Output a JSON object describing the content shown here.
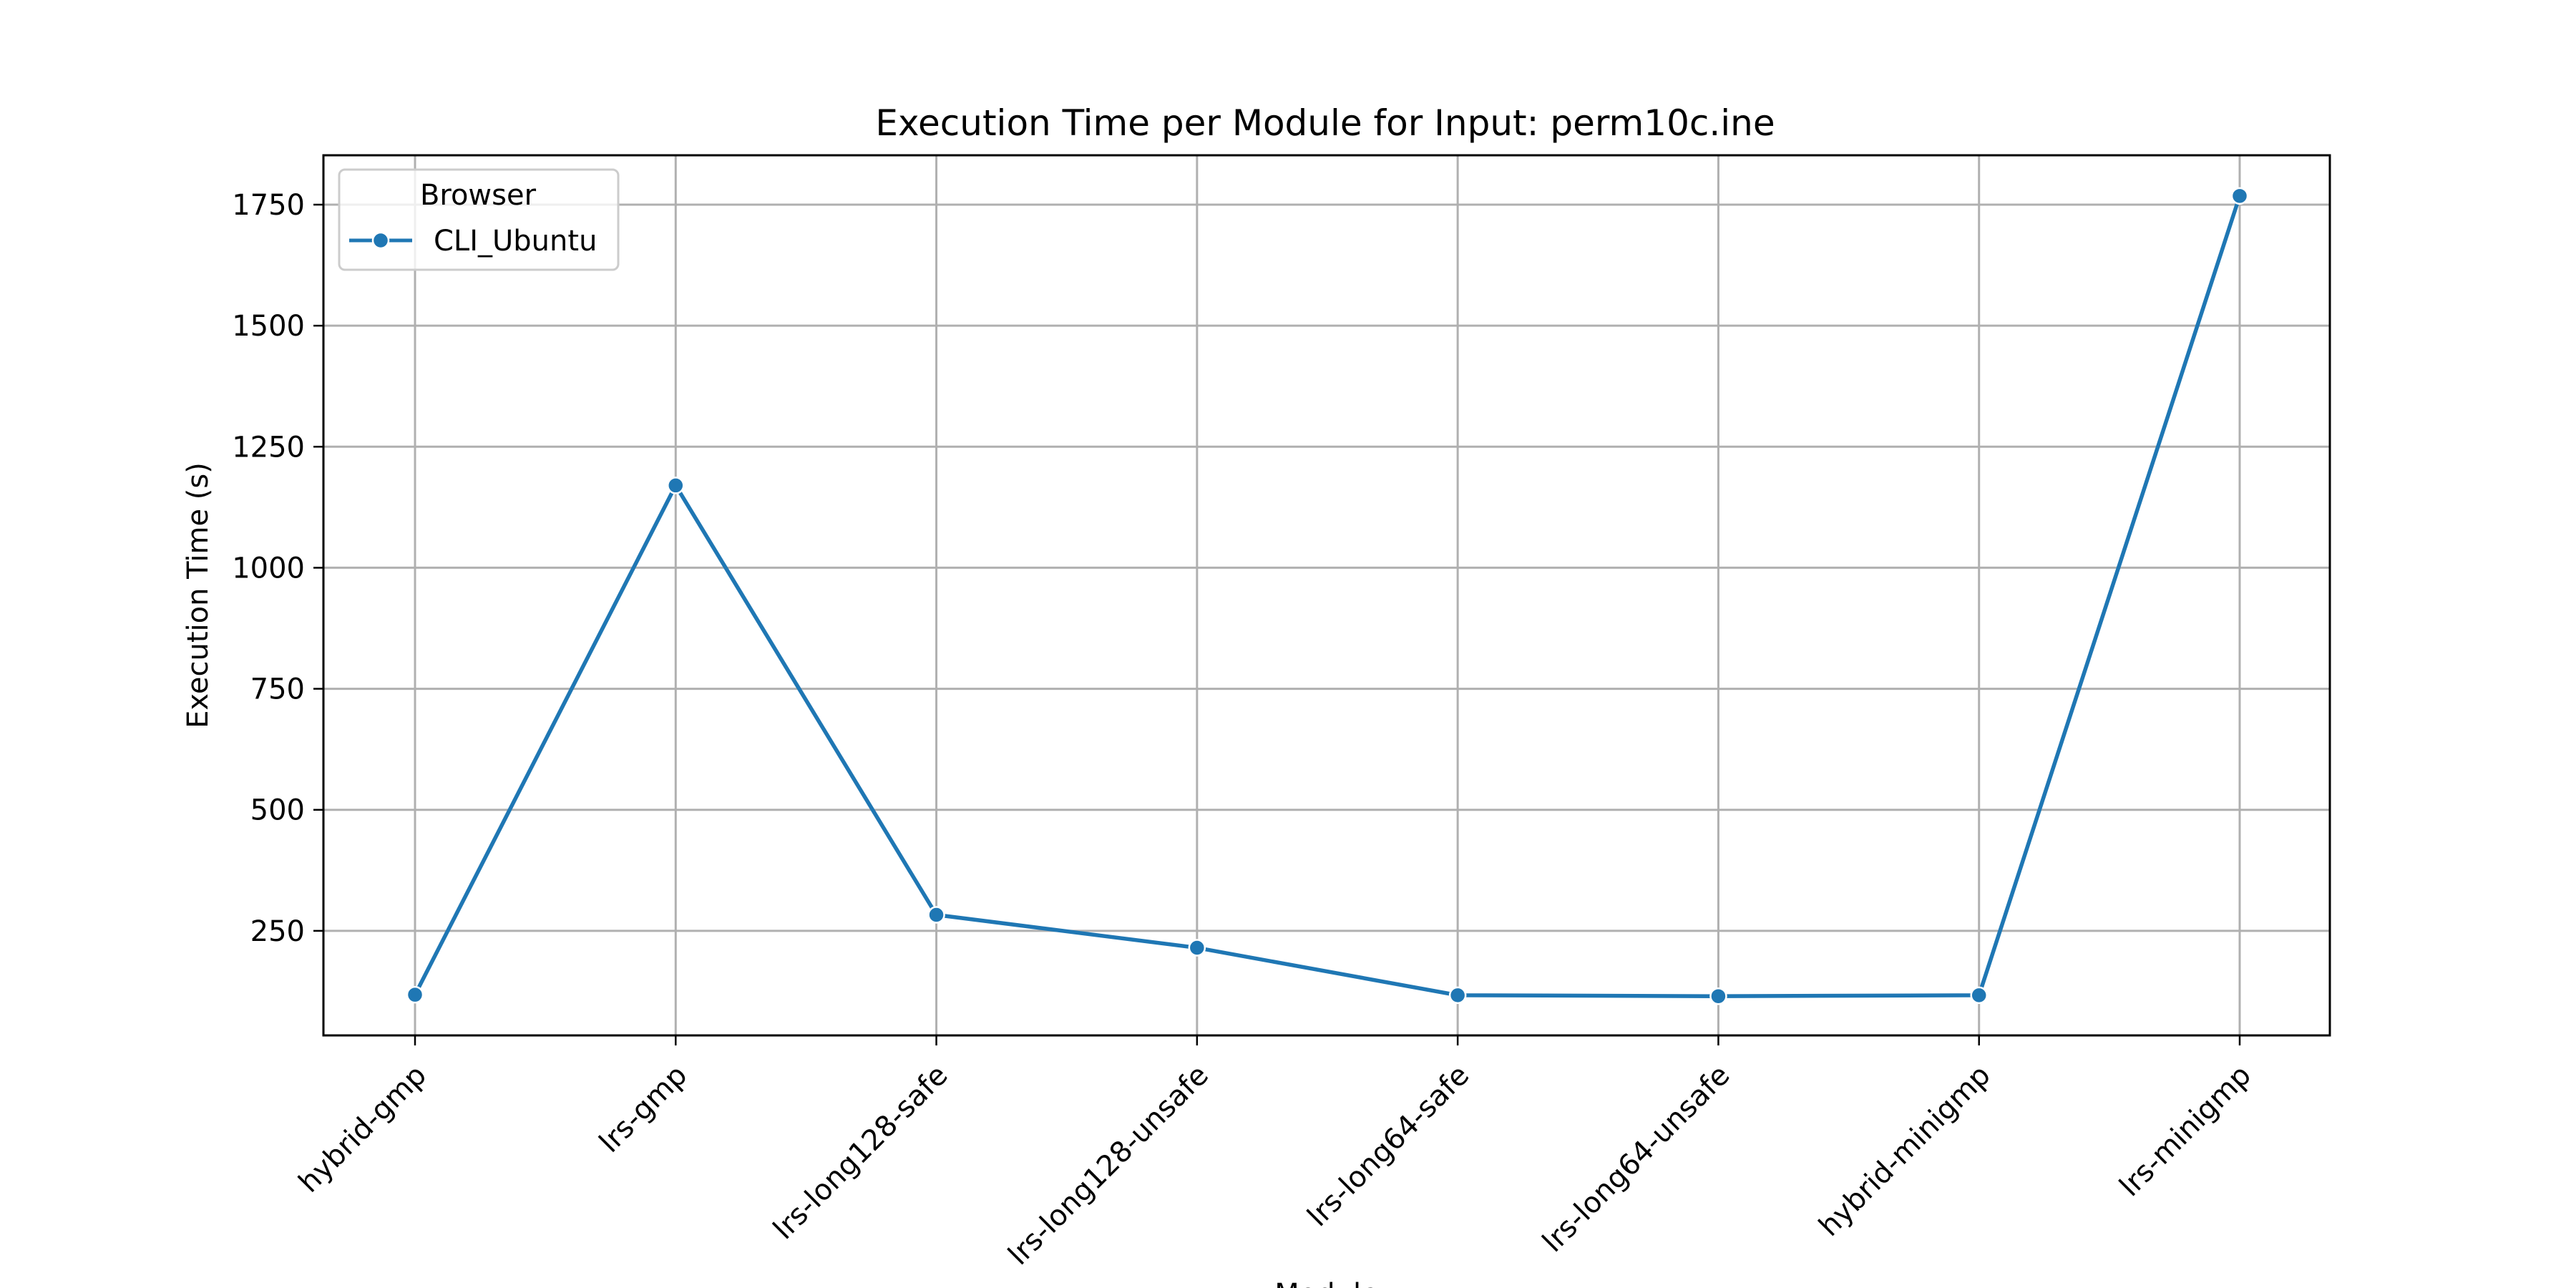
{
  "chart_data": {
    "type": "line",
    "title": "Execution Time per Module for Input: perm10c.ine",
    "xlabel": "Module",
    "ylabel": "Execution Time (s)",
    "categories": [
      "hybrid-gmp",
      "lrs-gmp",
      "lrs-long128-safe",
      "lrs-long128-unsafe",
      "lrs-long64-safe",
      "lrs-long64-unsafe",
      "hybrid-minigmp",
      "lrs-minigmp"
    ],
    "series": [
      {
        "name": "CLI_Ubuntu",
        "values": [
          118,
          1170,
          283,
          215,
          117,
          115,
          117,
          1768
        ],
        "color": "#1f77b4"
      }
    ],
    "yticks": [
      250,
      500,
      750,
      1000,
      1250,
      1500,
      1750
    ],
    "ylim": [
      34,
      1852
    ],
    "grid": true,
    "legend": {
      "title": "Browser",
      "placement": "upper-left"
    }
  }
}
